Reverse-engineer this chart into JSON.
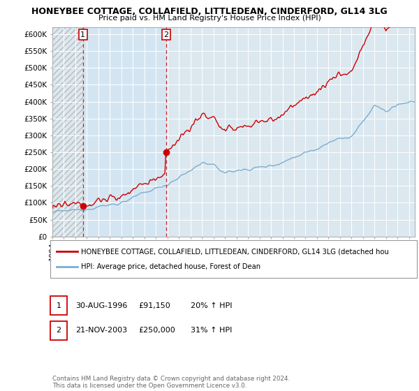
{
  "title1": "HONEYBEE COTTAGE, COLLAFIELD, LITTLEDEAN, CINDERFORD, GL14 3LG",
  "title2": "Price paid vs. HM Land Registry's House Price Index (HPI)",
  "ylabel_ticks": [
    "£0",
    "£50K",
    "£100K",
    "£150K",
    "£200K",
    "£250K",
    "£300K",
    "£350K",
    "£400K",
    "£450K",
    "£500K",
    "£550K",
    "£600K"
  ],
  "ytick_vals": [
    0,
    50000,
    100000,
    150000,
    200000,
    250000,
    300000,
    350000,
    400000,
    450000,
    500000,
    550000,
    600000
  ],
  "ylim": [
    0,
    620000
  ],
  "xlim_start": 1994.0,
  "xlim_end": 2025.5,
  "purchase1_x": 1996.66,
  "purchase1_y": 91150,
  "purchase2_x": 2003.89,
  "purchase2_y": 250000,
  "legend_line1": "HONEYBEE COTTAGE, COLLAFIELD, LITTLEDEAN, CINDERFORD, GL14 3LG (detached hou",
  "legend_line2": "HPI: Average price, detached house, Forest of Dean",
  "annotation1_date": "30-AUG-1996",
  "annotation1_price": "£91,150",
  "annotation1_hpi": "20% ↑ HPI",
  "annotation2_date": "21-NOV-2003",
  "annotation2_price": "£250,000",
  "annotation2_hpi": "31% ↑ HPI",
  "footnote": "Contains HM Land Registry data © Crown copyright and database right 2024.\nThis data is licensed under the Open Government Licence v3.0.",
  "line_color_red": "#cc0000",
  "line_color_blue": "#7aadcf",
  "bg_color": "#dce8f0",
  "bg_color_highlight": "#dce8f8",
  "grid_color": "#ffffff"
}
